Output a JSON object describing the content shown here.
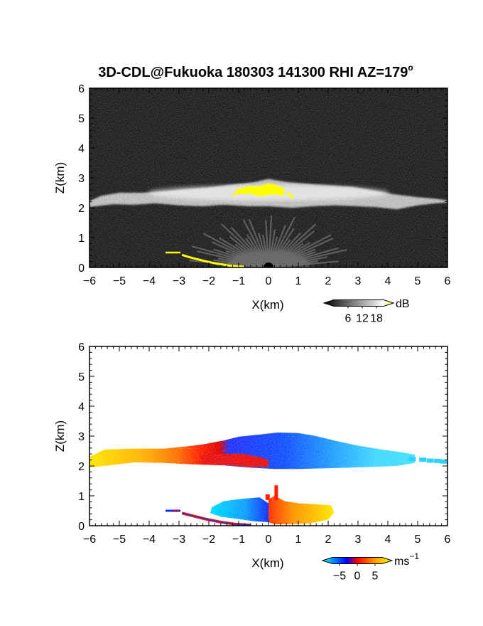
{
  "chart_data": [
    {
      "type": "heatmap",
      "title": "3D-CDL@Fukuoka 180303 141300 RHI AZ=179",
      "title_degree": "o",
      "xlabel": "X(km)",
      "ylabel": "Z(km)",
      "xlim": [
        -6,
        6
      ],
      "ylim": [
        0,
        6
      ],
      "x_ticks": [
        -6,
        -5,
        -4,
        -3,
        -2,
        -1,
        0,
        1,
        2,
        3,
        4,
        5,
        6
      ],
      "y_ticks": [
        0,
        1,
        2,
        3,
        4,
        5,
        6
      ],
      "field": "backscatter intensity",
      "colorbar": {
        "unit": "dB",
        "ticks": [
          6,
          12,
          18
        ],
        "range": [
          0,
          21
        ],
        "colors": [
          "#000000",
          "#ffffff",
          "#ffff00"
        ]
      },
      "features": [
        {
          "name": "cloud layer",
          "x_range": [
            -6,
            6
          ],
          "z_range": [
            2.0,
            3.0
          ],
          "level": "high"
        },
        {
          "name": "saturated core",
          "x_range": [
            -1.2,
            0.9
          ],
          "z_range": [
            2.3,
            2.8
          ],
          "level": "saturated"
        },
        {
          "name": "near-ground scatter",
          "x_range": [
            -2,
            2
          ],
          "z_range": [
            0,
            1
          ],
          "level": "medium"
        },
        {
          "name": "ground return",
          "x_range": [
            -3.5,
            -0.5
          ],
          "z_range": [
            0,
            0.5
          ],
          "level": "saturated"
        }
      ]
    },
    {
      "type": "heatmap",
      "xlabel": "X(km)",
      "ylabel": "Z(km)",
      "xlim": [
        -6,
        6
      ],
      "ylim": [
        0,
        6
      ],
      "x_ticks": [
        -6,
        -5,
        -4,
        -3,
        -2,
        -1,
        0,
        1,
        2,
        3,
        4,
        5,
        6
      ],
      "y_ticks": [
        0,
        1,
        2,
        3,
        4,
        5,
        6
      ],
      "field": "Doppler velocity",
      "colorbar": {
        "unit": "ms",
        "unit_superscript": "−1",
        "ticks": [
          "−5",
          "0",
          "5"
        ],
        "range": [
          -7,
          7
        ],
        "colors": [
          "#00ffff",
          "#0000ff",
          "#ff0000",
          "#ffff00"
        ]
      },
      "features": [
        {
          "name": "upper layer west",
          "x_range": [
            -6,
            -1.5
          ],
          "z_range": [
            2.0,
            2.7
          ],
          "velocity": 4
        },
        {
          "name": "upper layer transition",
          "x_range": [
            -2.5,
            0
          ],
          "z_range": [
            2.0,
            2.8
          ],
          "velocity": 0.5
        },
        {
          "name": "upper layer east",
          "x_range": [
            -1.5,
            6
          ],
          "z_range": [
            1.9,
            3.1
          ],
          "velocity": -4
        },
        {
          "name": "lower layer west",
          "x_range": [
            -2,
            0
          ],
          "z_range": [
            0,
            0.9
          ],
          "velocity": -5
        },
        {
          "name": "lower layer east",
          "x_range": [
            0,
            2.2
          ],
          "z_range": [
            0,
            1.1
          ],
          "velocity": 5
        }
      ]
    }
  ]
}
